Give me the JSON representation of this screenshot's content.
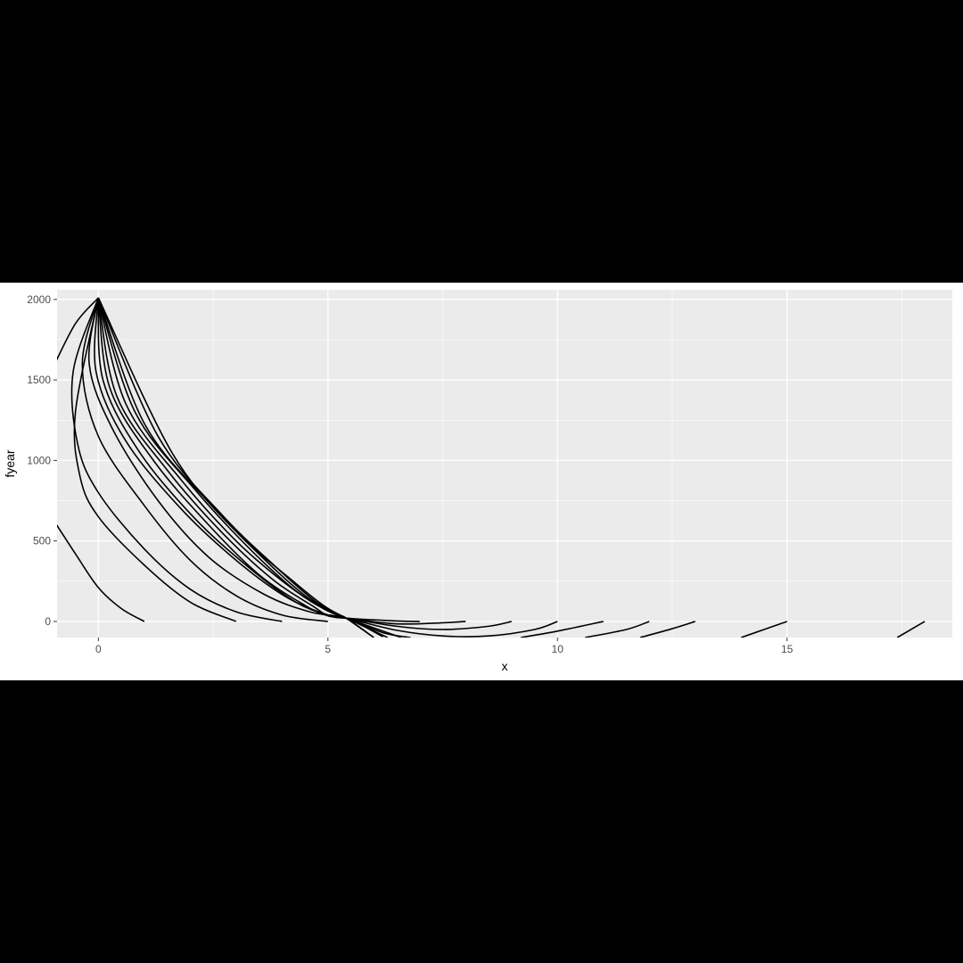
{
  "chart_data": {
    "type": "line",
    "title": "",
    "xlabel": "x",
    "ylabel": "fyear",
    "xlim": [
      -0.9,
      18.6
    ],
    "ylim": [
      -100,
      2060
    ],
    "x_ticks": [
      0,
      5,
      10,
      15
    ],
    "x_tick_labels": [
      "0",
      "5",
      "10",
      "15"
    ],
    "y_ticks": [
      0,
      500,
      1000,
      1500,
      2000
    ],
    "y_tick_labels": [
      "0",
      "500",
      "1000",
      "1500",
      "2000"
    ],
    "grid": true,
    "legend": "none",
    "panel_background": "#EBEBEB",
    "grid_color": "#FFFFFF",
    "line_color": "#000000",
    "series": [
      {
        "x": [
          -1,
          -0.5,
          0
        ],
        "y": [
          1570,
          1850,
          2010
        ]
      },
      {
        "x": [
          -1,
          -0.5,
          0,
          0.5,
          1
        ],
        "y": [
          640,
          420,
          210,
          80,
          0
        ]
      },
      {
        "x": [
          0,
          -0.5,
          -0.4,
          0,
          1,
          2,
          3
        ],
        "y": [
          2010,
          1300,
          900,
          650,
          350,
          120,
          0
        ]
      },
      {
        "x": [
          0,
          -0.55,
          -0.45,
          0,
          1,
          2,
          3,
          4
        ],
        "y": [
          2010,
          1550,
          1100,
          800,
          450,
          200,
          60,
          0
        ]
      },
      {
        "x": [
          0,
          -0.35,
          0,
          1,
          2,
          3,
          4,
          5
        ],
        "y": [
          2010,
          1600,
          1150,
          720,
          380,
          160,
          40,
          0
        ]
      },
      {
        "x": [
          0,
          -0.2,
          0.3,
          1.3,
          2.4,
          3.6,
          4.6,
          5.4,
          6.2
        ],
        "y": [
          2010,
          1600,
          1200,
          750,
          400,
          170,
          60,
          20,
          -95
        ]
      },
      {
        "x": [
          0,
          -0.05,
          0.6,
          1.8,
          3.0,
          4.1,
          5.0,
          5.4,
          6.5,
          7
        ],
        "y": [
          2010,
          1550,
          1120,
          700,
          380,
          150,
          40,
          20,
          3,
          0
        ]
      },
      {
        "x": [
          0,
          0.1,
          0.9,
          2.1,
          3.3,
          4.3,
          5.0,
          5.4,
          6.5,
          7.5,
          8
        ],
        "y": [
          2010,
          1500,
          1050,
          640,
          330,
          120,
          40,
          20,
          -15,
          -8,
          0
        ]
      },
      {
        "x": [
          0,
          0.25,
          1.2,
          2.4,
          3.5,
          4.5,
          5.0,
          5.4,
          6.5,
          7.5,
          8.5,
          9
        ],
        "y": [
          2010,
          1450,
          1000,
          600,
          290,
          100,
          35,
          20,
          -30,
          -50,
          -30,
          0
        ]
      },
      {
        "x": [
          0,
          0.4,
          1.5,
          2.7,
          3.8,
          4.7,
          5.0,
          5.4,
          6.5,
          7.5,
          8.5,
          9.5,
          10
        ],
        "y": [
          2010,
          1400,
          940,
          550,
          260,
          90,
          35,
          20,
          -55,
          -90,
          -90,
          -50,
          0
        ]
      },
      {
        "x": [
          0,
          0.6,
          1.8,
          3.0,
          4.1,
          4.9,
          5.4,
          6.2,
          6.8
        ],
        "y": [
          2010,
          1350,
          880,
          500,
          230,
          80,
          20,
          -70,
          -100
        ]
      },
      {
        "x": [
          0,
          0.8,
          2.1,
          3.3,
          4.3,
          5.0,
          5.4,
          6.0
        ],
        "y": [
          2010,
          1300,
          820,
          450,
          190,
          65,
          20,
          -100
        ]
      },
      {
        "x": [
          0,
          1.0,
          2.4,
          3.6,
          4.5,
          5.1,
          5.4,
          6.3
        ],
        "y": [
          2010,
          1230,
          740,
          390,
          160,
          55,
          20,
          -100
        ]
      },
      {
        "x": [
          0,
          1.3,
          2.7,
          3.9,
          4.7,
          5.2,
          5.4,
          6.6
        ],
        "y": [
          2010,
          1150,
          660,
          330,
          130,
          45,
          20,
          -100
        ]
      },
      {
        "x": [
          0,
          1.6,
          3.0,
          4.2,
          4.9,
          5.3,
          5.4,
          6.0
        ],
        "y": [
          2010,
          1050,
          560,
          260,
          100,
          35,
          20,
          -100
        ]
      },
      {
        "x": [
          9.2,
          10,
          11
        ],
        "y": [
          -100,
          -60,
          0
        ]
      },
      {
        "x": [
          10.6,
          11.5,
          12
        ],
        "y": [
          -100,
          -50,
          0
        ]
      },
      {
        "x": [
          11.8,
          12.5,
          13
        ],
        "y": [
          -100,
          -45,
          0
        ]
      },
      {
        "x": [
          14,
          14.5,
          15
        ],
        "y": [
          -100,
          -50,
          0
        ]
      },
      {
        "x": [
          17.4,
          18
        ],
        "y": [
          -100,
          0
        ]
      }
    ]
  }
}
